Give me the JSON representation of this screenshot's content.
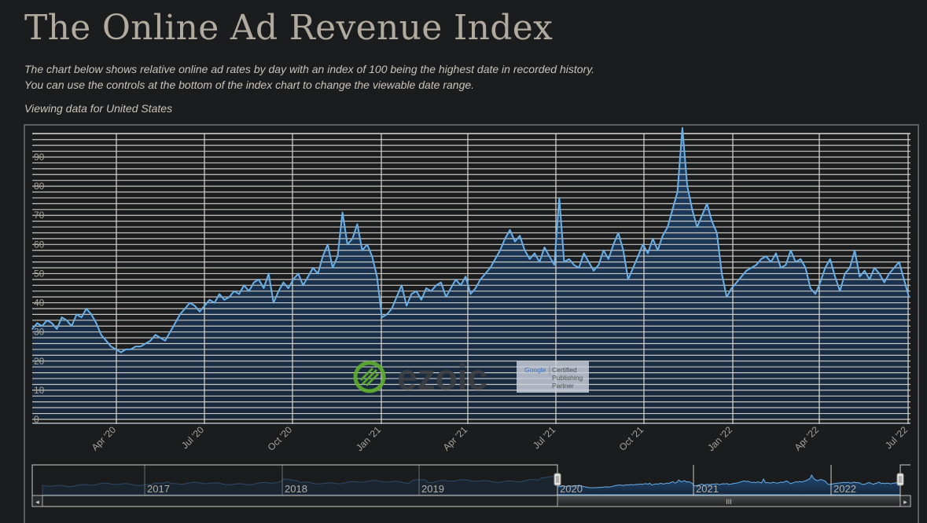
{
  "page": {
    "title": "The Online Ad Revenue Index",
    "description_line1": "The chart below shows relative online ad rates by day with an index of 100 being the highest date in recorded history.",
    "description_line2": "You can use the controls at the bottom of the index chart to change the viewable date range.",
    "viewing_label": "Viewing data for United States"
  },
  "watermark": {
    "brand": "ezoic",
    "badge_line1": "Google",
    "badge_line2": "Certified",
    "badge_line3": "Publishing",
    "badge_line4": "Partner"
  },
  "colors": {
    "line": "#6aaee6",
    "area_top": "#1d3f66",
    "area_bottom": "#17273a",
    "grid": "#dcd8d0",
    "background": "#1b1c1e"
  },
  "navigator": {
    "year_labels": [
      "2017",
      "2018",
      "2019",
      "2020",
      "2021",
      "2022"
    ],
    "scroll_grip": "III",
    "left_arrow": "◂",
    "right_arrow": "▸"
  },
  "chart_data": {
    "type": "area",
    "title": "The Online Ad Revenue Index",
    "xlabel": "",
    "ylabel": "",
    "ylim": [
      0,
      100
    ],
    "yticks": [
      0,
      10,
      20,
      30,
      40,
      50,
      60,
      70,
      80,
      90
    ],
    "xticks": [
      "Apr '20",
      "Jul '20",
      "Oct '20",
      "Jan '21",
      "Apr '21",
      "Jul '21",
      "Oct '21",
      "Jan '22",
      "Apr '22",
      "Jul '22"
    ],
    "grid": true,
    "legend": "none",
    "x_start": "2020-01-01",
    "x_end": "2022-07-01",
    "x_step_days": 7,
    "series": [
      {
        "name": "US Online Ad Revenue Index",
        "values": [
          31,
          33,
          32,
          34,
          33,
          31,
          35,
          34,
          32,
          36,
          35,
          38,
          36,
          33,
          29,
          27,
          25,
          24,
          23,
          24,
          24,
          25,
          25,
          26,
          27,
          29,
          28,
          27,
          30,
          33,
          36,
          38,
          40,
          39,
          37,
          39,
          41,
          40,
          43,
          41,
          42,
          44,
          43,
          46,
          44,
          47,
          48,
          45,
          50,
          40,
          44,
          47,
          45,
          48,
          50,
          46,
          49,
          52,
          50,
          56,
          60,
          52,
          56,
          71,
          60,
          62,
          67,
          58,
          60,
          56,
          49,
          35,
          36,
          38,
          42,
          46,
          39,
          43,
          44,
          41,
          45,
          44,
          46,
          47,
          42,
          45,
          48,
          46,
          49,
          43,
          45,
          48,
          50,
          52,
          55,
          58,
          62,
          65,
          61,
          63,
          58,
          55,
          57,
          54,
          59,
          56,
          53,
          76,
          54,
          55,
          53,
          52,
          57,
          54,
          51,
          53,
          58,
          55,
          60,
          64,
          58,
          48,
          52,
          56,
          60,
          57,
          62,
          58,
          63,
          66,
          72,
          78,
          100,
          80,
          72,
          66,
          70,
          74,
          68,
          64,
          50,
          42,
          45,
          47,
          49,
          51,
          52,
          53,
          55,
          56,
          54,
          57,
          52,
          53,
          58,
          54,
          55,
          52,
          45,
          43,
          47,
          52,
          55,
          49,
          44,
          50,
          52,
          58,
          49,
          51,
          48,
          52,
          50,
          47,
          50,
          52,
          54,
          48,
          42
        ]
      }
    ]
  }
}
